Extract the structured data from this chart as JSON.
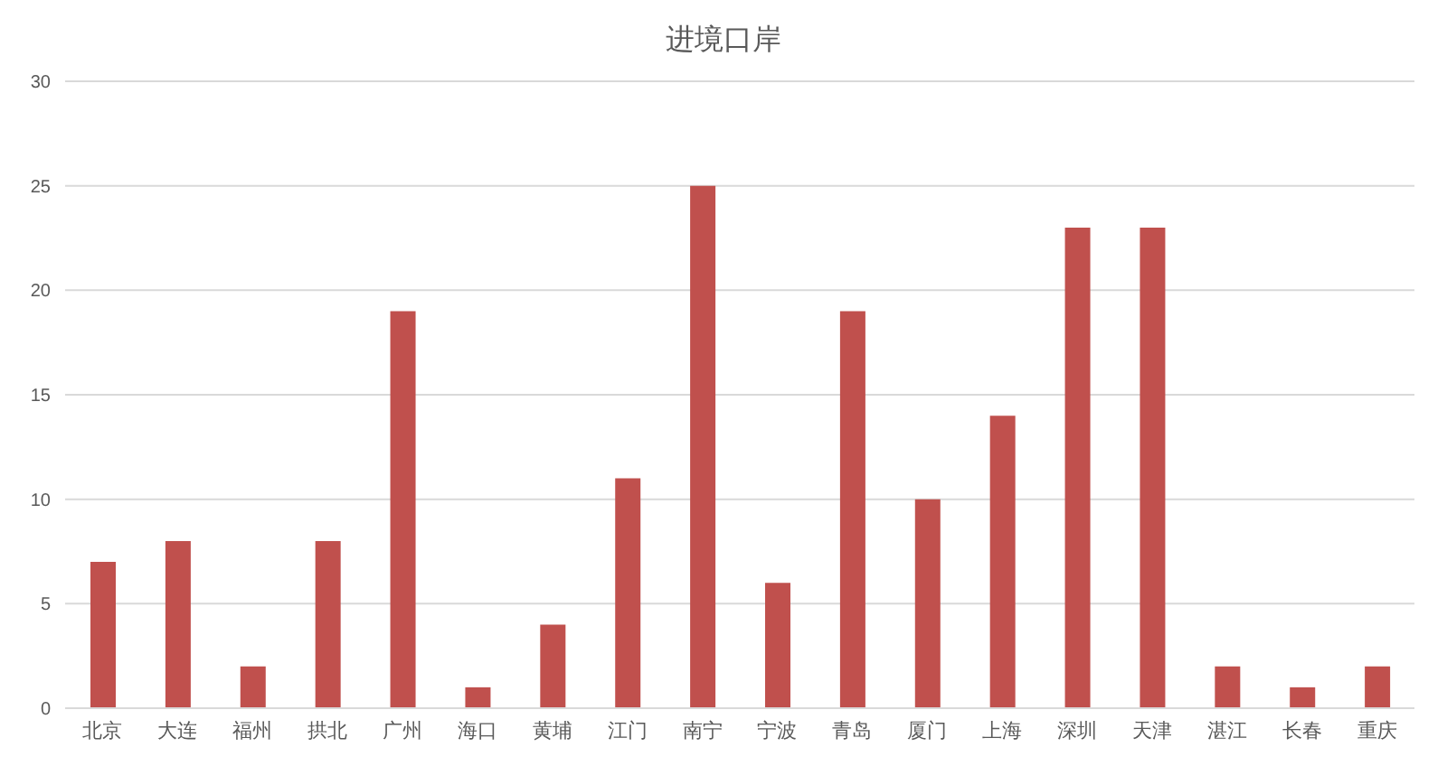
{
  "chart_data": {
    "type": "bar",
    "title": "进境口岸",
    "categories": [
      "北京",
      "大连",
      "福州",
      "拱北",
      "广州",
      "海口",
      "黄埔",
      "江门",
      "南宁",
      "宁波",
      "青岛",
      "厦门",
      "上海",
      "深圳",
      "天津",
      "湛江",
      "长春",
      "重庆"
    ],
    "values": [
      7,
      8,
      2,
      8,
      19,
      1,
      4,
      11,
      25,
      6,
      19,
      10,
      14,
      23,
      23,
      2,
      1,
      2
    ],
    "color": "#c0504d",
    "ylim": [
      0,
      30
    ],
    "yticks": [
      0,
      5,
      10,
      15,
      20,
      25,
      30
    ],
    "grid": "y"
  }
}
